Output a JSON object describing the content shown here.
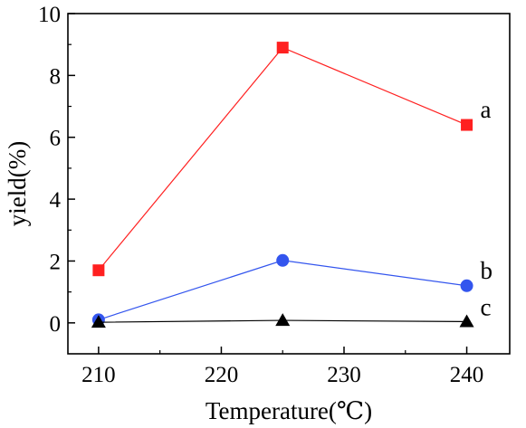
{
  "chart_data": {
    "type": "line",
    "title": "",
    "xlabel": "Temperature(℃)",
    "ylabel": "yield(%)",
    "xlim": [
      207.5,
      243.5
    ],
    "ylim": [
      -1,
      10
    ],
    "x": [
      210,
      225,
      240
    ],
    "xticks": [
      210,
      220,
      230,
      240
    ],
    "xtick_labels": [
      "210",
      "220",
      "230",
      "240"
    ],
    "yticks": [
      0,
      2,
      4,
      6,
      8,
      10
    ],
    "ytick_labels": [
      "0",
      "2",
      "4",
      "6",
      "8",
      "10"
    ],
    "grid": false,
    "legend": "none",
    "series": [
      {
        "name": "a",
        "values": [
          1.7,
          8.9,
          6.4
        ],
        "color": "#ff2020",
        "marker": "square"
      },
      {
        "name": "b",
        "values": [
          0.1,
          2.02,
          1.2
        ],
        "color": "#3355ee",
        "marker": "circle"
      },
      {
        "name": "c",
        "values": [
          0.02,
          0.08,
          0.04
        ],
        "color": "#000000",
        "marker": "triangle"
      }
    ]
  }
}
